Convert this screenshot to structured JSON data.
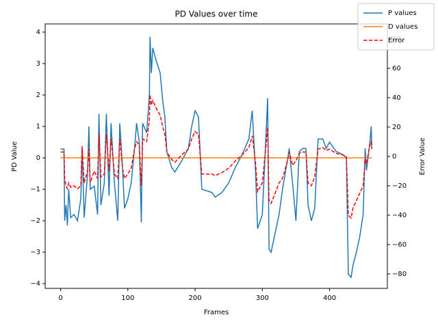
{
  "chart_data": {
    "type": "line",
    "title": "PD Values over time",
    "xlabel": "Frames",
    "ylabel": "PD Value",
    "y2label": "Error Value",
    "xlim": [
      -23,
      486
    ],
    "ylim": [
      -4.15,
      4.26
    ],
    "y2lim": [
      -89.8,
      90.2
    ],
    "xticks": [
      0,
      100,
      200,
      300,
      400
    ],
    "yticks": [
      {
        "value": -4,
        "label": "−4"
      },
      {
        "value": -3,
        "label": "−3"
      },
      {
        "value": -2,
        "label": "−2"
      },
      {
        "value": -1,
        "label": "−1"
      },
      0,
      1,
      2,
      3,
      4
    ],
    "y2ticks": [
      {
        "value": -80,
        "label": "−80"
      },
      {
        "value": -60,
        "label": "−60"
      },
      {
        "value": -40,
        "label": "−40"
      },
      {
        "value": -20,
        "label": "−20"
      },
      0,
      20,
      40,
      60,
      80
    ],
    "legend": "upper right",
    "series": [
      {
        "name": "P values",
        "color": "#1f77b4",
        "dash": false,
        "axis": "y",
        "x": [
          0,
          5,
          6,
          8,
          10,
          12,
          15,
          20,
          25,
          30,
          32,
          35,
          40,
          42,
          44,
          50,
          55,
          57,
          60,
          65,
          68,
          72,
          75,
          80,
          85,
          88,
          92,
          95,
          100,
          105,
          110,
          113,
          117,
          120,
          122,
          128,
          132,
          133,
          135,
          137,
          142,
          148,
          152,
          155,
          158,
          165,
          170,
          180,
          190,
          195,
          200,
          205,
          210,
          225,
          230,
          240,
          250,
          260,
          270,
          280,
          285,
          290,
          293,
          300,
          305,
          308,
          310,
          313,
          320,
          325,
          330,
          338,
          340,
          345,
          350,
          355,
          360,
          365,
          368,
          373,
          378,
          383,
          390,
          395,
          400,
          410,
          420,
          425,
          428,
          432,
          435,
          440,
          445,
          450,
          453,
          455,
          460,
          462,
          463
        ],
        "values": [
          0.28,
          0.28,
          -2.0,
          -1.5,
          -2.15,
          -1.0,
          -1.9,
          -1.8,
          -2.0,
          -1.3,
          0.3,
          -1.9,
          -0.5,
          1.0,
          -1.0,
          -0.9,
          -1.8,
          1.4,
          -1.5,
          -0.8,
          1.4,
          -1.2,
          1.1,
          -0.8,
          -2.0,
          1.1,
          -0.3,
          -1.6,
          -1.3,
          -0.8,
          0.3,
          1.1,
          0.5,
          -2.05,
          1.1,
          0.8,
          2.0,
          3.85,
          2.7,
          3.5,
          3.1,
          2.7,
          1.8,
          1.3,
          0.2,
          -0.3,
          -0.45,
          -0.1,
          0.3,
          1.0,
          1.5,
          1.3,
          -1.0,
          -1.1,
          -1.25,
          -1.1,
          -0.8,
          -0.3,
          0.1,
          0.6,
          1.5,
          -0.5,
          -2.25,
          -1.8,
          0.5,
          1.9,
          -2.9,
          -3.0,
          -2.3,
          -1.8,
          -1.0,
          0.0,
          0.3,
          -0.8,
          -2.0,
          0.2,
          0.3,
          0.3,
          -1.5,
          -2.0,
          -1.6,
          0.6,
          0.6,
          0.3,
          0.5,
          0.2,
          0.1,
          0.0,
          -3.7,
          -3.8,
          -3.4,
          -3.0,
          -2.5,
          -1.8,
          0.3,
          -0.4,
          0.5,
          1.0,
          0.3
        ]
      },
      {
        "name": "D values",
        "color": "#ff7f0e",
        "dash": false,
        "axis": "y",
        "x": [
          0,
          463
        ],
        "values": [
          0,
          0
        ]
      },
      {
        "name": "Error",
        "color": "#ff0000",
        "dash": true,
        "axis": "y2",
        "x": [
          0,
          5,
          6,
          8,
          10,
          12,
          15,
          20,
          25,
          30,
          32,
          35,
          40,
          42,
          44,
          50,
          55,
          57,
          60,
          65,
          68,
          72,
          75,
          80,
          85,
          88,
          92,
          95,
          100,
          105,
          110,
          113,
          117,
          120,
          122,
          128,
          132,
          133,
          135,
          137,
          142,
          148,
          152,
          155,
          158,
          165,
          170,
          180,
          190,
          195,
          200,
          205,
          210,
          225,
          230,
          240,
          250,
          260,
          270,
          280,
          285,
          290,
          293,
          300,
          305,
          308,
          310,
          313,
          320,
          325,
          330,
          338,
          340,
          345,
          350,
          355,
          360,
          365,
          368,
          373,
          378,
          383,
          390,
          395,
          400,
          410,
          420,
          425,
          428,
          432,
          435,
          440,
          445,
          450,
          453,
          455,
          460,
          462,
          463
        ],
        "values": [
          3,
          3,
          -15,
          -20,
          -22,
          -18,
          -21,
          -20,
          -22,
          -20,
          7,
          -18,
          -10,
          5,
          -18,
          -10,
          -15,
          15,
          -14,
          -12,
          15,
          -10,
          12,
          -12,
          -15,
          12,
          -8,
          -15,
          -12,
          -8,
          5,
          10,
          8,
          -20,
          12,
          10,
          25,
          42,
          35,
          38,
          33,
          28,
          20,
          15,
          3,
          -2,
          -4,
          1,
          5,
          12,
          17,
          15,
          -12,
          -12,
          -13,
          -11,
          -8,
          -3,
          1,
          6,
          14,
          -5,
          -24,
          -18,
          5,
          20,
          -30,
          -32,
          -24,
          -18,
          -15,
          -2,
          3,
          -6,
          -3,
          2,
          3,
          3,
          -18,
          -20,
          -14,
          5,
          6,
          4,
          5,
          2,
          1,
          0,
          -40,
          -42,
          -35,
          -30,
          -25,
          -20,
          -2,
          -5,
          8,
          10,
          5
        ]
      }
    ]
  }
}
